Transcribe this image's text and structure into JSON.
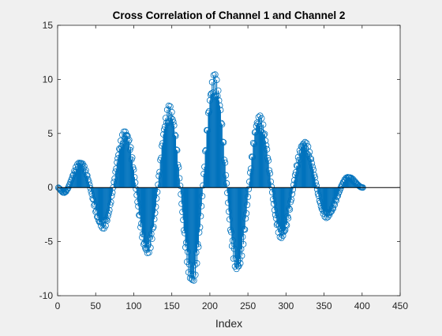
{
  "chart_data": {
    "type": "stem",
    "title": "Cross Correlation of Channel 1 and Channel 2",
    "xlabel": "Index",
    "ylabel": "",
    "xlim": [
      0,
      450
    ],
    "ylim": [
      -10,
      15
    ],
    "xticks": [
      0,
      50,
      100,
      150,
      200,
      250,
      300,
      350,
      400,
      450
    ],
    "yticks": [
      -10,
      -5,
      0,
      5,
      10,
      15
    ],
    "grid": false,
    "legend": "none",
    "color": "#0072BD",
    "baseline_y": 0,
    "marker": "circle-open",
    "n_points": 401,
    "x_range": [
      1,
      401
    ],
    "envelope_peaks": [
      {
        "x": 0,
        "y": 0
      },
      {
        "x": 8,
        "y": -0.5
      },
      {
        "x": 30,
        "y": 2.4
      },
      {
        "x": 60,
        "y": -3.8
      },
      {
        "x": 89,
        "y": 5.3
      },
      {
        "x": 118,
        "y": -6.2
      },
      {
        "x": 147,
        "y": 7.6
      },
      {
        "x": 177,
        "y": -9.0
      },
      {
        "x": 206,
        "y": 10.5
      },
      {
        "x": 236,
        "y": -7.8
      },
      {
        "x": 265,
        "y": 6.7
      },
      {
        "x": 294,
        "y": -4.7
      },
      {
        "x": 324,
        "y": 4.3
      },
      {
        "x": 353,
        "y": -2.8
      },
      {
        "x": 382,
        "y": 1.0
      },
      {
        "x": 401,
        "y": 0
      }
    ]
  }
}
